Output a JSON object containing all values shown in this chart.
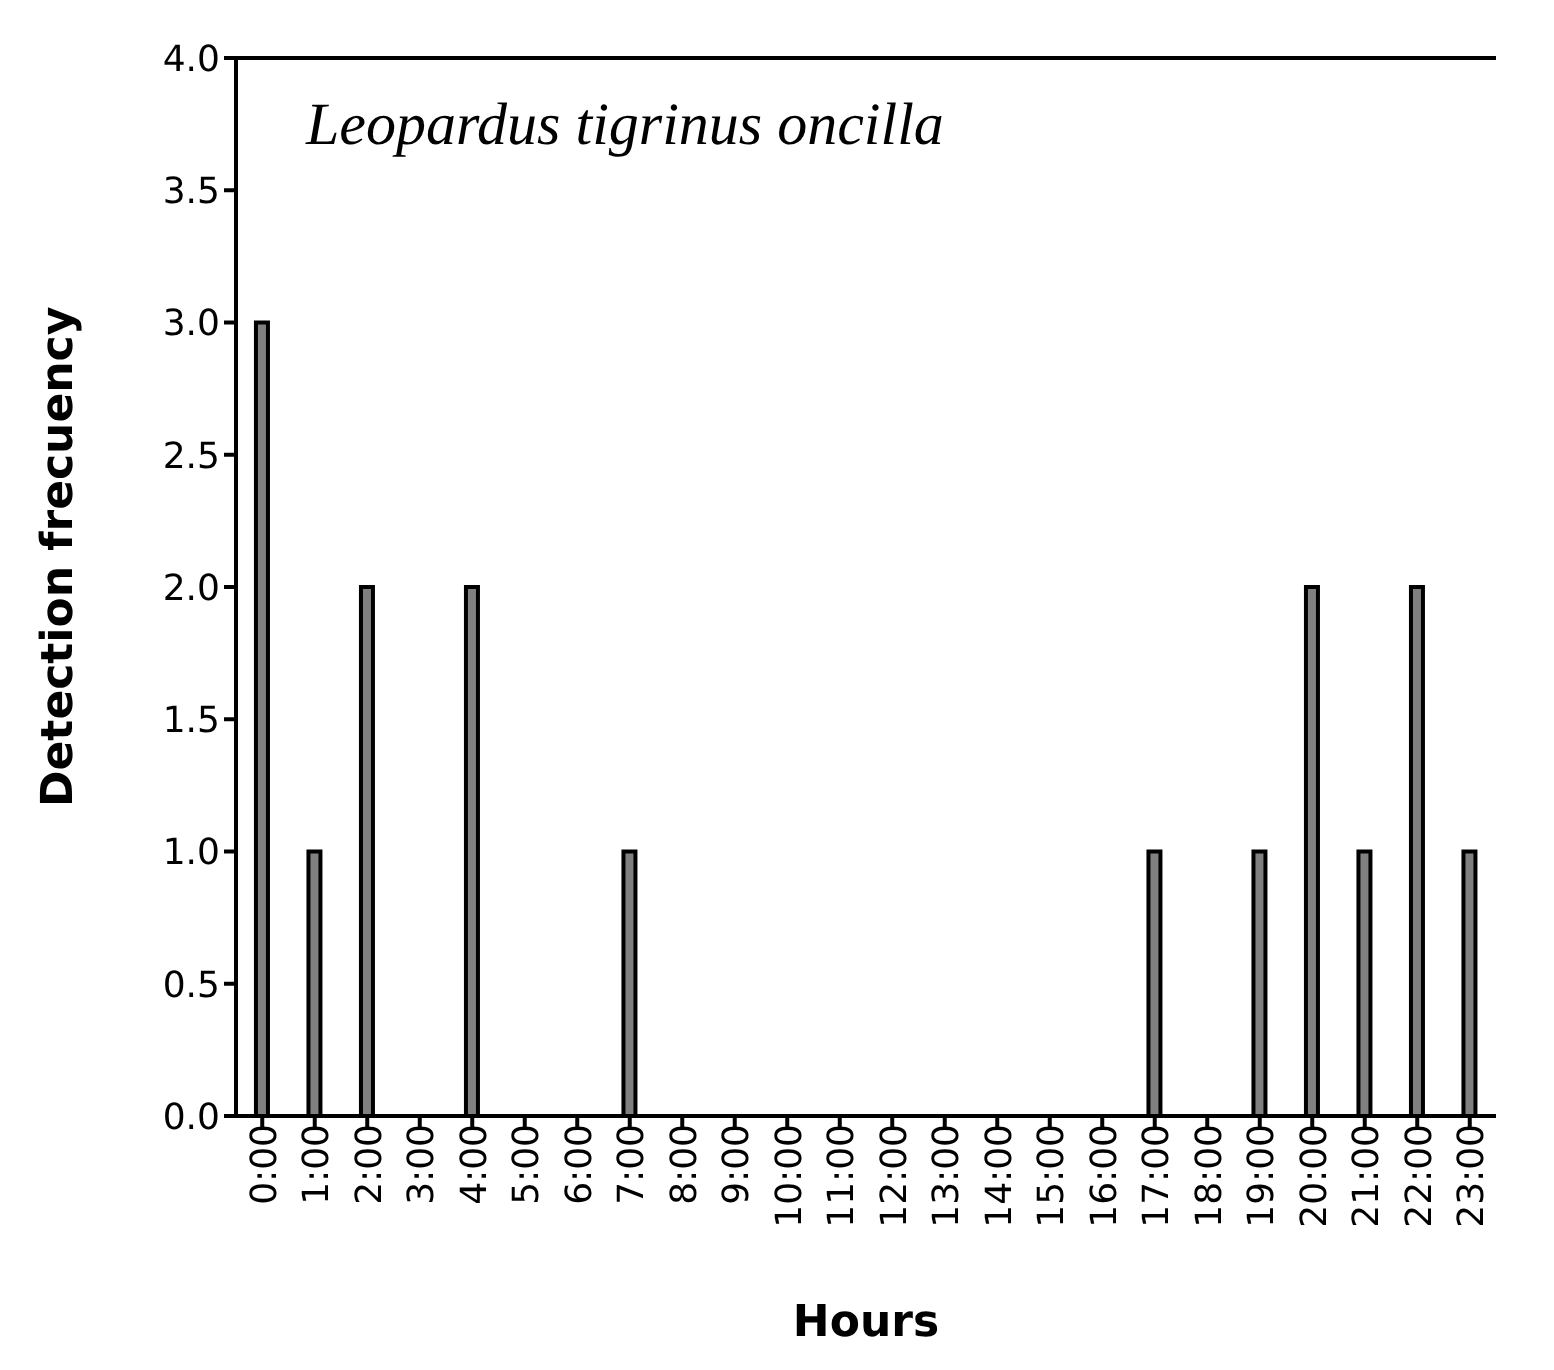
{
  "chart_data": {
    "type": "bar",
    "title": "Leopardus tigrinus oncilla",
    "xlabel": "Hours",
    "ylabel": "Detection frecuency",
    "categories": [
      "0:00",
      "1:00",
      "2:00",
      "3:00",
      "4:00",
      "5:00",
      "6:00",
      "7:00",
      "8:00",
      "9:00",
      "10:00",
      "11:00",
      "12:00",
      "13:00",
      "14:00",
      "15:00",
      "16:00",
      "17:00",
      "18:00",
      "19:00",
      "20:00",
      "21:00",
      "22:00",
      "23:00"
    ],
    "values": [
      3,
      1,
      2,
      0,
      2,
      0,
      0,
      1,
      0,
      0,
      0,
      0,
      0,
      0,
      0,
      0,
      0,
      1,
      0,
      1,
      2,
      1,
      2,
      1
    ],
    "color": "#808080",
    "ylim": [
      0,
      4
    ],
    "yticks": [
      {
        "value": 0,
        "label": "0.0"
      },
      0.5,
      {
        "value": 1,
        "label": "1.0"
      },
      1.5,
      {
        "value": 2,
        "label": "2.0"
      },
      2.5,
      {
        "value": 3,
        "label": "3.0"
      },
      3.5,
      {
        "value": 4,
        "label": "4.0"
      }
    ],
    "grid": false,
    "legend": false
  }
}
